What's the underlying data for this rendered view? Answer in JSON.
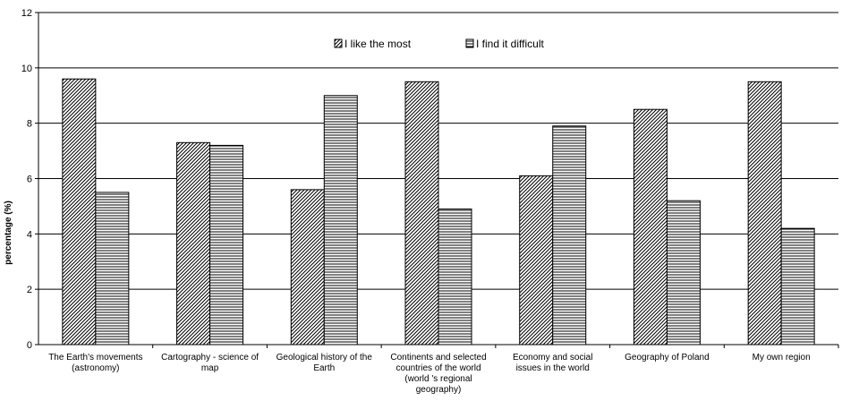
{
  "chart_data": {
    "type": "bar",
    "title": "",
    "xlabel": "",
    "ylabel": "percentage (%)",
    "ylim": [
      0,
      12
    ],
    "yticks": [
      0,
      2,
      4,
      6,
      8,
      10,
      12
    ],
    "grid": "horizontal",
    "legend_position": "top-center",
    "categories": [
      [
        "The Earth's movements",
        "(astronomy)"
      ],
      [
        "Cartography - science of",
        "map"
      ],
      [
        "Geological history of the",
        "Earth"
      ],
      [
        "Continents and selected",
        "countries of the world",
        "(world 's regional",
        "geography)"
      ],
      [
        "Economy and social",
        "issues in the world"
      ],
      [
        "Geography of Poland"
      ],
      [
        "My own region"
      ]
    ],
    "series": [
      {
        "name": "I like the most",
        "pattern": "diagonal-hatch",
        "values": [
          9.6,
          7.3,
          5.6,
          9.5,
          6.1,
          8.5,
          9.5
        ]
      },
      {
        "name": "I find it difficult",
        "pattern": "horizontal-stripes",
        "values": [
          5.5,
          7.2,
          9.0,
          4.9,
          7.9,
          5.2,
          4.2
        ]
      }
    ],
    "colors": {
      "bar_fill": "#ffffff",
      "bar_stroke": "#000000",
      "pattern": "#000000",
      "grid": "#000000",
      "background": "#ffffff"
    }
  }
}
